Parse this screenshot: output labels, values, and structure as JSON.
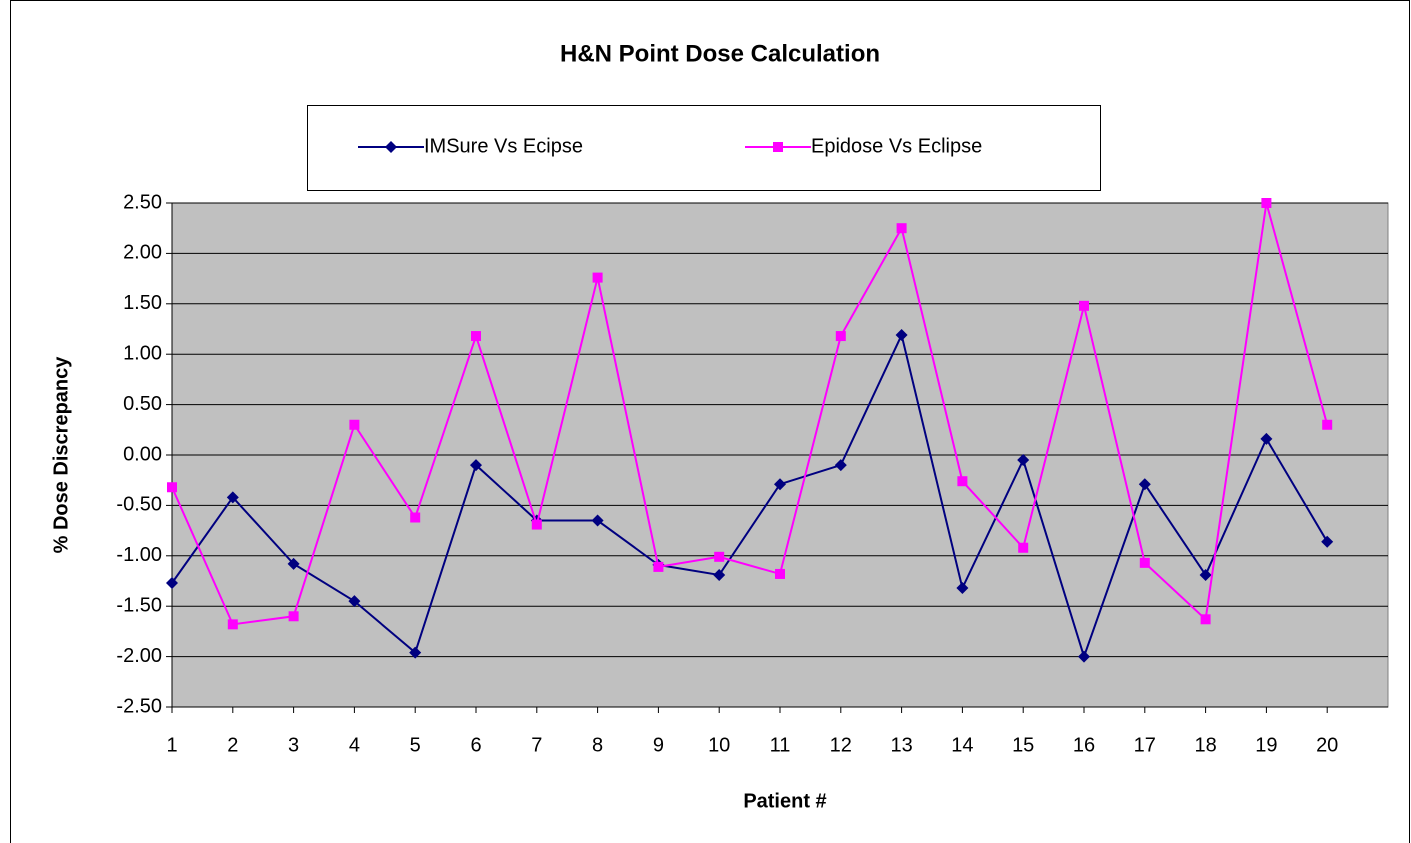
{
  "chart_data": {
    "type": "line",
    "title": "H&N Point Dose Calculation",
    "xlabel": "Patient #",
    "ylabel": "% Dose Discrepancy",
    "categories": [
      "1",
      "2",
      "3",
      "4",
      "5",
      "6",
      "7",
      "8",
      "9",
      "10",
      "11",
      "12",
      "13",
      "14",
      "15",
      "16",
      "17",
      "18",
      "19",
      "20"
    ],
    "series": [
      {
        "name": "IMSure Vs Ecipse",
        "color": "#000080",
        "marker": "diamond",
        "values": [
          -1.27,
          -0.42,
          -1.08,
          -1.45,
          -1.96,
          -0.1,
          -0.65,
          -0.65,
          -1.09,
          -1.19,
          -0.29,
          -0.1,
          1.19,
          -1.32,
          -0.05,
          -2.0,
          -0.29,
          -1.19,
          0.16,
          -0.86
        ]
      },
      {
        "name": "Epidose Vs Eclipse",
        "color": "#ff00ff",
        "marker": "square",
        "values": [
          -0.32,
          -1.68,
          -1.6,
          0.3,
          -0.62,
          1.18,
          -0.69,
          1.76,
          -1.11,
          -1.01,
          -1.18,
          1.18,
          2.25,
          -0.26,
          -0.92,
          1.48,
          -1.07,
          -1.63,
          2.5,
          0.3
        ]
      }
    ],
    "ylim": [
      -2.5,
      2.5
    ],
    "yticks": [
      {
        "value": -2.5,
        "label": "-2.50"
      },
      {
        "value": -2,
        "label": "-2.00"
      },
      {
        "value": -1.5,
        "label": "-1.50"
      },
      {
        "value": -1,
        "label": "-1.00"
      },
      {
        "value": -0.5,
        "label": "-0.50"
      },
      {
        "value": 0,
        "label": "0.00"
      },
      {
        "value": 0.5,
        "label": "0.50"
      },
      {
        "value": 1,
        "label": "1.00"
      },
      {
        "value": 1.5,
        "label": "1.50"
      },
      {
        "value": 2,
        "label": "2.00"
      },
      {
        "value": 2.5,
        "label": "2.50"
      }
    ],
    "grid": true,
    "legend": "top",
    "plot_background": "#c0c0c0"
  }
}
